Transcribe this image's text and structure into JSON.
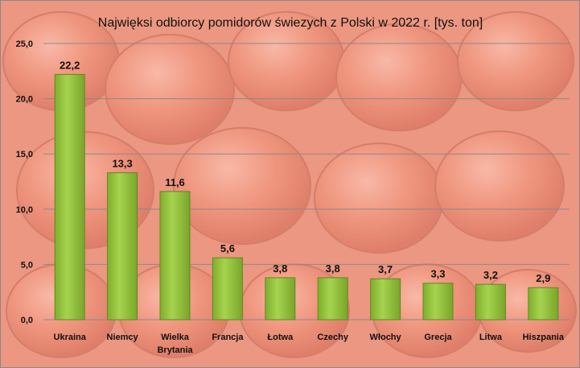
{
  "chart_data": {
    "type": "bar",
    "title": "Najwięksi odbiorcy pomidorów świezych z Polski w 2022 r. [tys. ton]",
    "categories": [
      "Ukraina",
      "Niemcy",
      "Wielka Brytania",
      "Francja",
      "Łotwa",
      "Czechy",
      "Włochy",
      "Grecja",
      "Litwa",
      "Hiszpania"
    ],
    "category_lines": [
      [
        "Ukraina"
      ],
      [
        "Niemcy"
      ],
      [
        "Wielka",
        "Brytania"
      ],
      [
        "Francja"
      ],
      [
        "Łotwa"
      ],
      [
        "Czechy"
      ],
      [
        "Włochy"
      ],
      [
        "Grecja"
      ],
      [
        "Litwa"
      ],
      [
        "Hiszpania"
      ]
    ],
    "values": [
      22.2,
      13.3,
      11.6,
      5.6,
      3.8,
      3.8,
      3.7,
      3.3,
      3.2,
      2.9
    ],
    "data_labels": [
      "22,2",
      "13,3",
      "11,6",
      "5,6",
      "3,8",
      "3,8",
      "3,7",
      "3,3",
      "3,2",
      "2,9"
    ],
    "ylim": [
      0,
      25
    ],
    "yticks": [
      "0,0",
      "5,0",
      "10,0",
      "15,0",
      "20,0",
      "25,0"
    ],
    "grid": true,
    "legend": "none",
    "bar_color": "#92c43c",
    "background": "tomato photo"
  }
}
